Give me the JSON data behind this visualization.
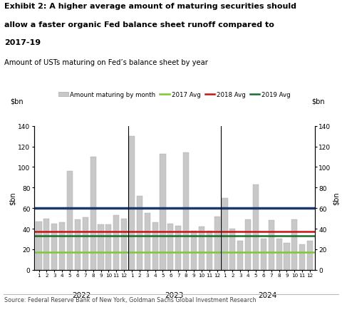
{
  "title_line1": "Exhibit 2: A higher average amount of maturing securities should",
  "title_line2": "allow a faster organic Fed balance sheet runoff compared to",
  "title_line3": "2017-19",
  "subtitle": "Amount of USTs maturing on Fed’s balance sheet by year",
  "source": "Source: Federal Reserve Bank of New York, Goldman Sachs Global Investment Research",
  "ylabel_left": "$bn",
  "ylabel_right": "$bn",
  "ylim": [
    0,
    140
  ],
  "yticks": [
    0,
    20,
    40,
    60,
    80,
    100,
    120,
    140
  ],
  "bar_values_2022": [
    47,
    50,
    45,
    46,
    96,
    49,
    51,
    110,
    44,
    44,
    53,
    50
  ],
  "bar_values_2023": [
    130,
    72,
    55,
    46,
    113,
    45,
    43,
    114,
    38,
    42,
    38,
    52
  ],
  "bar_values_2024": [
    70,
    40,
    28,
    49,
    83,
    30,
    48,
    30,
    26,
    49,
    25,
    28
  ],
  "avg_2017_val": 17,
  "avg_2018_val": 37,
  "avg_2019_val": 33,
  "avg_current_val": 60,
  "color_2017": "#7dc832",
  "color_2018": "#cc1111",
  "color_2019": "#1a6e2a",
  "color_current": "#1a3a6e",
  "bar_color": "#c8c8c8",
  "bar_edge_color": "#aaaaaa",
  "year_labels": [
    "2022",
    "2023",
    "2024"
  ],
  "legend_bar_label": "Amount maturing by month",
  "legend_2017_label": "2017 Avg",
  "legend_2018_label": "2018 Avg",
  "legend_2019_label": "2019 Avg"
}
